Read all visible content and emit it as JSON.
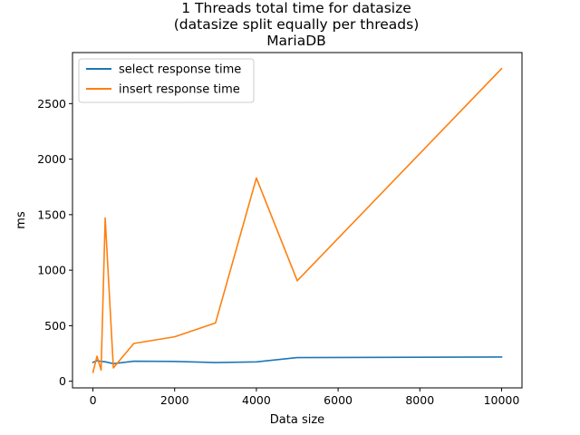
{
  "chart_data": {
    "type": "line",
    "title": [
      "1 Threads total time for datasize",
      "(datasize split equally per threads)",
      "MariaDB"
    ],
    "xlabel": "Data size",
    "ylabel": "ms",
    "xlim": [
      -500,
      10500
    ],
    "ylim": [
      -60,
      2960
    ],
    "xticks": [
      0,
      2000,
      4000,
      6000,
      8000,
      10000
    ],
    "yticks": [
      0,
      500,
      1000,
      1500,
      2000,
      2500
    ],
    "legend_position": "top-left",
    "grid": false,
    "series": [
      {
        "name": "select response time",
        "color": "#1f77b4",
        "points": [
          [
            1,
            170
          ],
          [
            100,
            185
          ],
          [
            200,
            178
          ],
          [
            300,
            175
          ],
          [
            500,
            158
          ],
          [
            1000,
            180
          ],
          [
            2000,
            178
          ],
          [
            3000,
            168
          ],
          [
            4000,
            174
          ],
          [
            5000,
            213
          ],
          [
            10000,
            218
          ]
        ]
      },
      {
        "name": "insert response time",
        "color": "#ff7f0e",
        "points": [
          [
            1,
            80
          ],
          [
            100,
            225
          ],
          [
            200,
            100
          ],
          [
            300,
            1470
          ],
          [
            500,
            120
          ],
          [
            1000,
            340
          ],
          [
            2000,
            400
          ],
          [
            3000,
            525
          ],
          [
            4000,
            1830
          ],
          [
            5000,
            905
          ],
          [
            10000,
            2815
          ]
        ]
      }
    ]
  }
}
